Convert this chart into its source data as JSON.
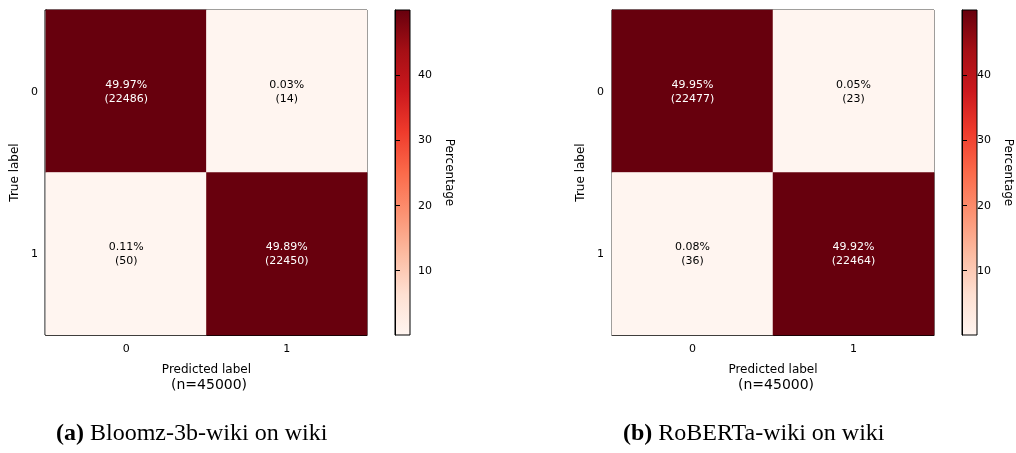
{
  "chart_data": [
    {
      "type": "heatmap",
      "title": "(a) Bloomz-3b-wiki on wiki",
      "xlabel": "Predicted label",
      "ylabel": "True label",
      "clabel": "Percentage",
      "categories": [
        "0",
        "1"
      ],
      "y_categories": [
        "0",
        "1"
      ],
      "cells": [
        [
          49.97,
          0.03
        ],
        [
          0.11,
          49.89
        ]
      ],
      "cell_labels": [
        [
          "49.97%\n(22486)",
          "0.03%\n(14)"
        ],
        [
          "0.11%\n(50)",
          "49.89%\n(22450)"
        ]
      ],
      "clim": [
        0.03,
        49.97
      ],
      "cticks": [
        10,
        20,
        30,
        40
      ],
      "annotations": [
        "(n=45000)"
      ]
    },
    {
      "type": "heatmap",
      "title": "(b) RoBERTa-wiki on wiki",
      "xlabel": "Predicted label",
      "ylabel": "True label",
      "clabel": "Percentage",
      "categories": [
        "0",
        "1"
      ],
      "y_categories": [
        "0",
        "1"
      ],
      "cells": [
        [
          49.95,
          0.05
        ],
        [
          0.08,
          49.92
        ]
      ],
      "cell_labels": [
        [
          "49.95%\n(22477)",
          "0.05%\n(23)"
        ],
        [
          "0.08%\n(36)",
          "49.92%\n(22464)"
        ]
      ],
      "clim": [
        0.05,
        49.95
      ],
      "cticks": [
        10,
        20,
        30,
        40
      ],
      "annotations": [
        "(n=45000)"
      ]
    }
  ]
}
